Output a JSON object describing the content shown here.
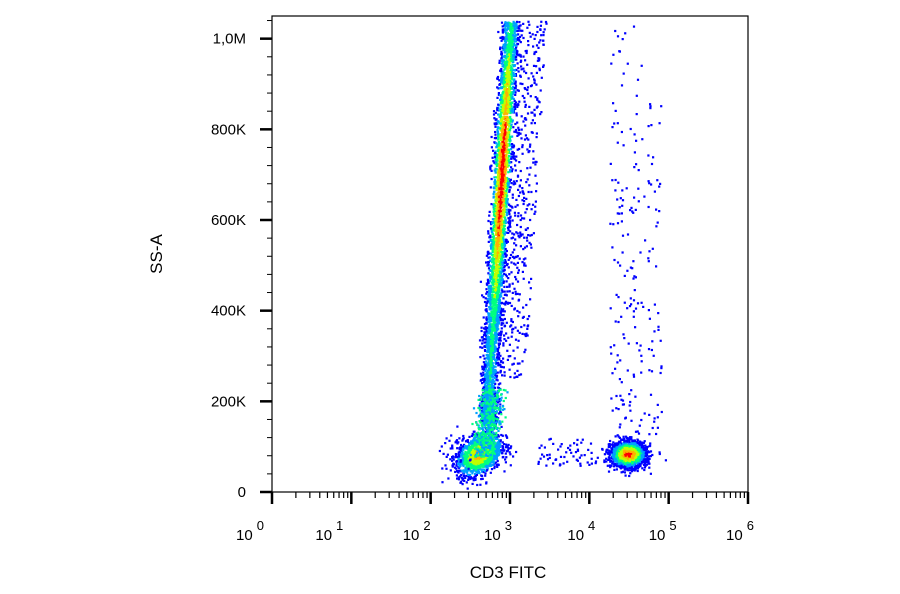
{
  "chart_data": {
    "type": "scatter",
    "subtype": "flow-cytometry density dot plot",
    "xlabel": "CD3 FITC",
    "ylabel": "SS-A",
    "x_scale": "log",
    "xlim": [
      1,
      1000000
    ],
    "ylim": [
      0,
      1050000
    ],
    "x_ticks": [
      {
        "value": 1,
        "base": "10",
        "exp": "0"
      },
      {
        "value": 10,
        "base": "10",
        "exp": "1"
      },
      {
        "value": 100,
        "base": "10",
        "exp": "2"
      },
      {
        "value": 1000,
        "base": "10",
        "exp": "3"
      },
      {
        "value": 10000,
        "base": "10",
        "exp": "4"
      },
      {
        "value": 100000,
        "base": "10",
        "exp": "5"
      },
      {
        "value": 1000000,
        "base": "10",
        "exp": "6"
      }
    ],
    "y_ticks": [
      {
        "value": 0,
        "label": "0"
      },
      {
        "value": 200000,
        "label": "200K"
      },
      {
        "value": 400000,
        "label": "400K"
      },
      {
        "value": 600000,
        "label": "600K"
      },
      {
        "value": 800000,
        "label": "800K"
      },
      {
        "value": 1000000,
        "label": "1,0M"
      }
    ],
    "color_scale": [
      "#0000ff",
      "#00a0ff",
      "#00ff80",
      "#c0ff00",
      "#ffb000",
      "#ff0000"
    ],
    "populations": [
      {
        "name": "CD3-negative low-SSC cluster",
        "x_center": 450,
        "y_center": 90000,
        "density": "high"
      },
      {
        "name": "CD3-negative high-SSC stripe",
        "x_range": [
          400,
          1100
        ],
        "y_range": [
          150000,
          1050000
        ],
        "peak_y": 700000,
        "density": "high"
      },
      {
        "name": "CD3-positive cluster",
        "x_center": 30000,
        "y_center": 85000,
        "density": "high"
      },
      {
        "name": "CD3-positive sparse events",
        "x_range": [
          12000,
          110000
        ],
        "y_range": [
          150000,
          1040000
        ],
        "density": "low"
      }
    ]
  }
}
